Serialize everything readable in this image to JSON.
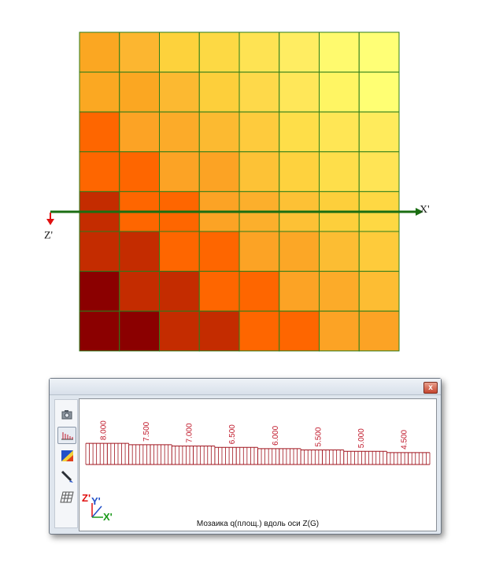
{
  "mosaic": {
    "grid": [
      [
        "#fba722",
        "#fcb630",
        "#fdd23c",
        "#fdd944",
        "#fee353",
        "#ffed62",
        "#fffa6e",
        "#ffff76"
      ],
      [
        "#fba822",
        "#fba722",
        "#fcb931",
        "#fdcf3b",
        "#fed94a",
        "#ffe759",
        "#fff563",
        "#ffff73"
      ],
      [
        "#fe6600",
        "#fca325",
        "#fcab29",
        "#fcba31",
        "#fecb3d",
        "#fede49",
        "#ffe655",
        "#ffeb5c"
      ],
      [
        "#fe6600",
        "#fe6600",
        "#fca325",
        "#fca324",
        "#fdc236",
        "#fed23e",
        "#fede4a",
        "#ffe455"
      ],
      [
        "#c42c00",
        "#fe6600",
        "#fe6600",
        "#fca325",
        "#fcaf2c",
        "#fdc135",
        "#fdcf3b",
        "#fed843"
      ],
      [
        "#c42c00",
        "#c42c00",
        "#fe6600",
        "#fe6600",
        "#fca325",
        "#fca726",
        "#fcbd33",
        "#fecb3b"
      ],
      [
        "#8b0000",
        "#c42c00",
        "#c42c00",
        "#fe6600",
        "#fe6600",
        "#fca325",
        "#fcab29",
        "#fdbd33"
      ],
      [
        "#8b0000",
        "#8b0000",
        "#c42c00",
        "#c42c00",
        "#fe6600",
        "#fe6600",
        "#fca325",
        "#fca325"
      ]
    ],
    "grid_line_color": "#2c7d1a",
    "section_line_color": "#1a6e12",
    "x_axis_label": "X'",
    "z_axis_label": "Z'"
  },
  "panel": {
    "close_label": "x",
    "tools": [
      {
        "name": "camera-icon"
      },
      {
        "name": "diagram-icon",
        "active": true
      },
      {
        "name": "color-map-icon"
      },
      {
        "name": "pen-icon"
      },
      {
        "name": "grid-icon"
      }
    ],
    "caption": "Мозаика q(площ.) вдоль оси  Z(G)",
    "triad": {
      "z": "Z'",
      "y": "Y'",
      "x": "X'"
    }
  },
  "chart_data": {
    "type": "bar",
    "title": "Мозаика q(площ.) вдоль оси  Z(G)",
    "series": [
      {
        "values": [
          8.0,
          8.0,
          7.5,
          7.5,
          7.0,
          7.0,
          6.5,
          6.5,
          6.0,
          6.0,
          5.5,
          5.5,
          5.0,
          5.0,
          4.5,
          4.5
        ]
      }
    ],
    "value_labels": [
      "8.000",
      "7.500",
      "7.000",
      "6.500",
      "6.000",
      "5.500",
      "5.000",
      "4.500"
    ],
    "ylim": [
      0,
      8.5
    ],
    "grid": false,
    "colors": {
      "outline": "#a0141e",
      "label": "#c0182a"
    }
  }
}
